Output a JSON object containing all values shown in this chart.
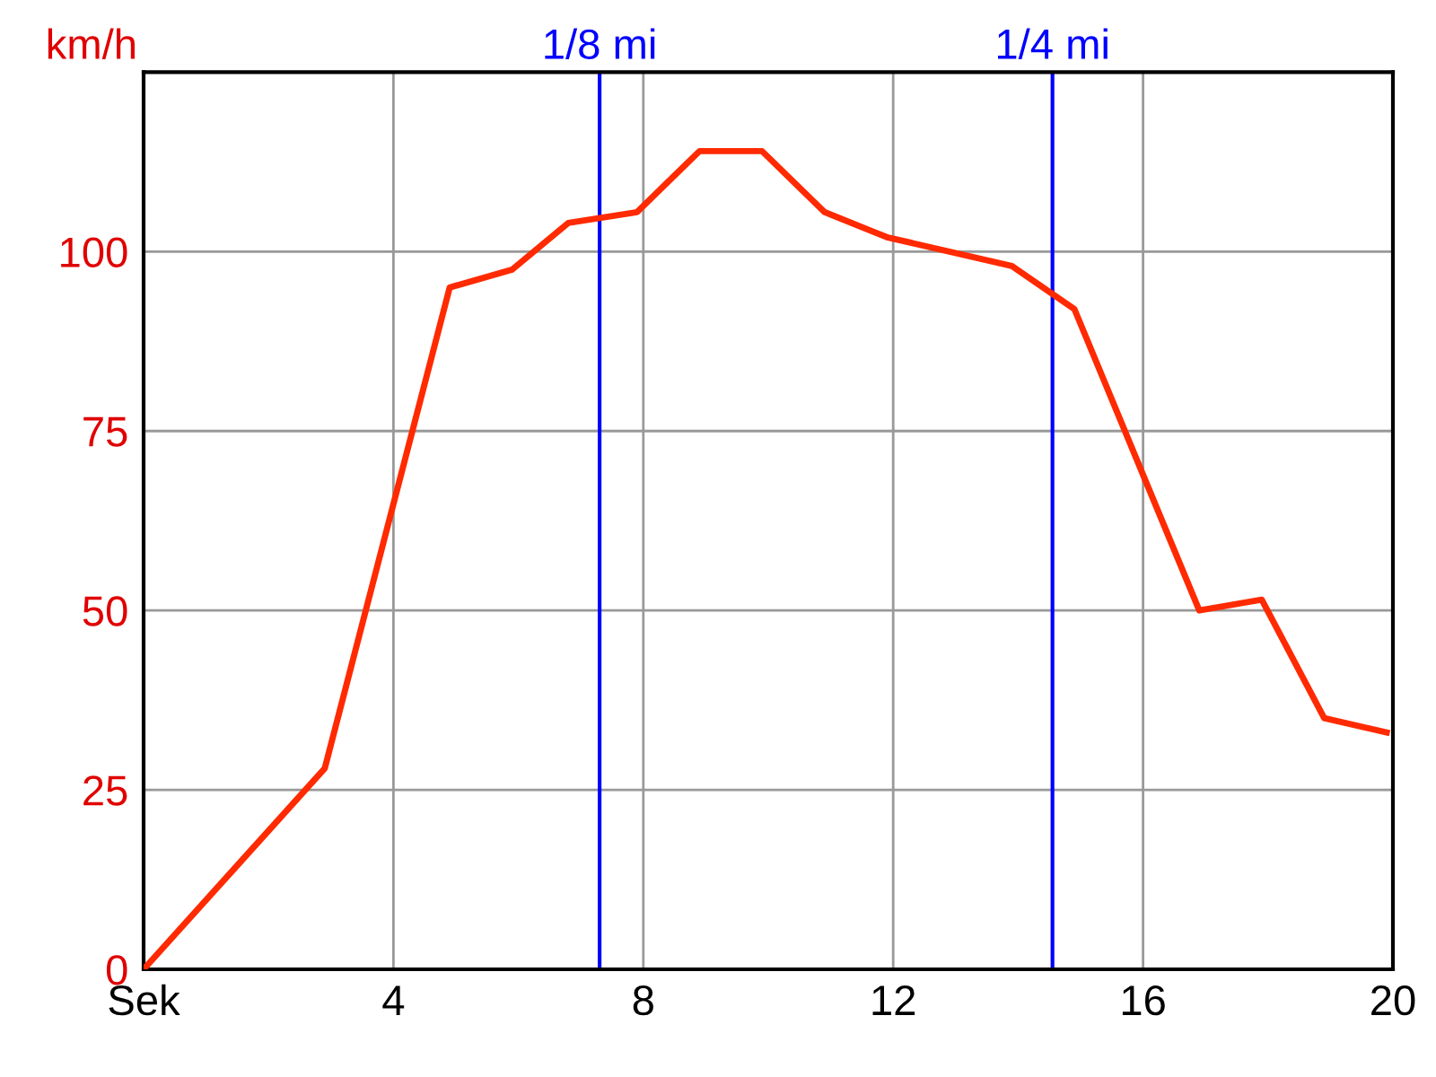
{
  "chart_data": {
    "type": "line",
    "ylabel": "km/h",
    "x": [
      0,
      2.9,
      4.9,
      5.9,
      6.8,
      7.9,
      8.9,
      9.9,
      10.9,
      11.9,
      13.9,
      14.9,
      16.9,
      17.9,
      18.9,
      19.9
    ],
    "series": [
      {
        "color": "#ff2a00",
        "values": [
          0,
          28,
          95,
          97.5,
          104,
          105.5,
          114,
          114,
          105.5,
          102,
          98,
          92,
          50,
          51.5,
          35,
          33
        ]
      }
    ],
    "xlim": [
      0,
      20
    ],
    "xticks": [
      {
        "value": 0,
        "label": "Sek"
      },
      4,
      8,
      12,
      16,
      20
    ],
    "ylim": [
      0,
      125
    ],
    "yticks": [
      0,
      25,
      50,
      75,
      100
    ],
    "ref_lines": [
      {
        "axis": "x",
        "value": 7.3,
        "label": "1/8 mi",
        "color": "#0000ff"
      },
      {
        "axis": "x",
        "value": 14.55,
        "label": "1/4 mi",
        "color": "#0000ff"
      }
    ],
    "grid": true,
    "legend": false,
    "marker": "none",
    "line_style": "solid"
  }
}
